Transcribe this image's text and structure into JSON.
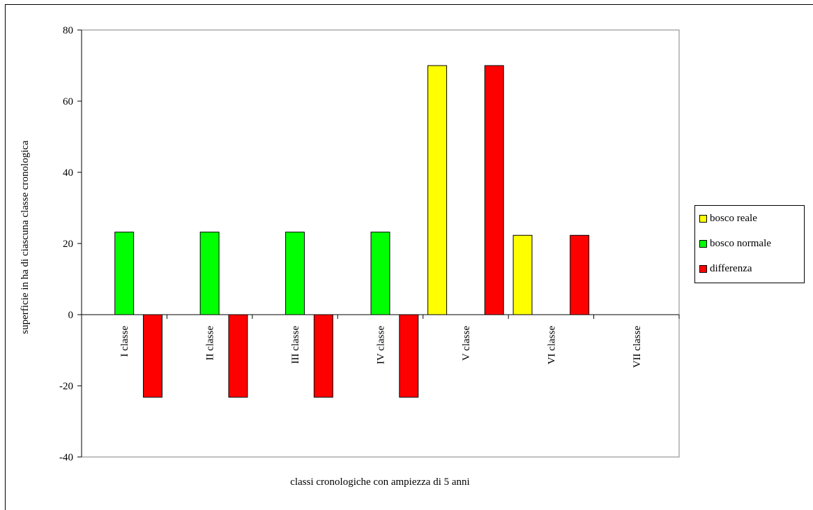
{
  "chart_data": {
    "type": "bar",
    "title": "",
    "xlabel": "classi cronologiche con ampiezza di 5 anni",
    "ylabel": "superficie in ha di ciascuna classe cronologica",
    "categories": [
      "I classe",
      "II classe",
      "III classe",
      "IV classe",
      "V classe",
      "VI classe",
      "VII classe"
    ],
    "series": [
      {
        "name": "bosco reale",
        "color": "#ffff00",
        "values": [
          0,
          0,
          0,
          0,
          70,
          22.3,
          0
        ]
      },
      {
        "name": "bosco normale",
        "color": "#00ff00",
        "values": [
          23.2,
          23.2,
          23.2,
          23.2,
          0,
          0,
          0
        ]
      },
      {
        "name": "differenza",
        "color": "#ff0000",
        "values": [
          -23.2,
          -23.2,
          -23.2,
          -23.2,
          70,
          22.3,
          0
        ]
      }
    ],
    "ylim": [
      -40,
      80
    ],
    "yticks": [
      -40,
      -20,
      0,
      20,
      40,
      60,
      80
    ],
    "grid": false,
    "legend_position": "right"
  }
}
